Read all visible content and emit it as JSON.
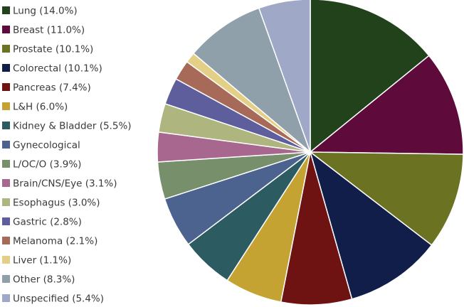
{
  "chart_data": {
    "type": "pie",
    "title": "",
    "legend_position": "left",
    "start_angle_deg": -90,
    "direction": "clockwise",
    "slices": [
      {
        "label": "Lung (14.0%)",
        "value": 14.0,
        "color": "#22421c"
      },
      {
        "label": "Breast (11.0%)",
        "value": 11.0,
        "color": "#5e0a3b"
      },
      {
        "label": "Prostate (10.1%)",
        "value": 10.1,
        "color": "#6b7322"
      },
      {
        "label": "Colorectal (10.1%)",
        "value": 10.1,
        "color": "#111e4a"
      },
      {
        "label": "Pancreas (7.4%)",
        "value": 7.4,
        "color": "#6e1212"
      },
      {
        "label": "L&H (6.0%)",
        "value": 6.0,
        "color": "#c4a332"
      },
      {
        "label": "Kidney & Bladder (5.5%)",
        "value": 5.5,
        "color": "#2c5b62"
      },
      {
        "label": "Gynecological",
        "value": 5.3,
        "color": "#4d638f"
      },
      {
        "label": "L/OC/O (3.9%)",
        "value": 3.9,
        "color": "#788f6b"
      },
      {
        "label": "Brain/CNS/Eye (3.1%)",
        "value": 3.1,
        "color": "#a8678f"
      },
      {
        "label": "Esophagus (3.0%)",
        "value": 3.0,
        "color": "#aeb57e"
      },
      {
        "label": "Gastric (2.8%)",
        "value": 2.8,
        "color": "#5e5e9c"
      },
      {
        "label": "Melanoma (2.1%)",
        "value": 2.1,
        "color": "#a86a58"
      },
      {
        "label": "Liver (1.1%)",
        "value": 1.1,
        "color": "#e3cf86"
      },
      {
        "label": "Other (8.3%)",
        "value": 8.3,
        "color": "#8fa0ab"
      },
      {
        "label": "Unspecified (5.4%)",
        "value": 5.4,
        "color": "#a0a8c8"
      }
    ]
  }
}
